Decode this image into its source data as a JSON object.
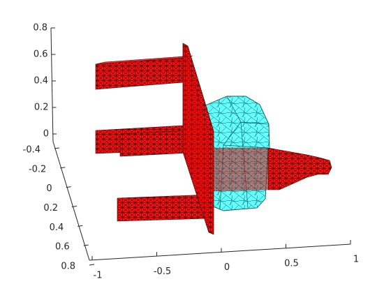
{
  "chart_data": {
    "type": "mesh3d",
    "title": "",
    "xlabel": "",
    "ylabel": "",
    "zlabel": "",
    "grid": false,
    "xlim": [
      -1,
      1
    ],
    "ylim": [
      -0.4,
      0.8
    ],
    "zlim": [
      0,
      0.8
    ],
    "x_ticks": [
      "-1",
      "-0.5",
      "0",
      "0.5",
      "1"
    ],
    "y_ticks": [
      "-0.4",
      "-0.2",
      "0",
      "0.2",
      "0.4",
      "0.6",
      "0.8"
    ],
    "z_ticks": [
      "0",
      "0.2",
      "0.4",
      "0.6",
      "0.8"
    ],
    "colors": {
      "mount_mesh": "#ff0000",
      "housing_mesh": "#66ffff",
      "edge": "#000000",
      "axis": "#262626"
    },
    "objects": [
      {
        "part": "mount-plate",
        "color": "#ff0000"
      },
      {
        "part": "upper-prong",
        "color": "#ff0000"
      },
      {
        "part": "middle-prong-left",
        "color": "#ff0000"
      },
      {
        "part": "middle-prong-right",
        "color": "#ff0000"
      },
      {
        "part": "lower-prong",
        "color": "#ff0000"
      },
      {
        "part": "body-housing",
        "color": "#66ffff"
      },
      {
        "part": "nozzle",
        "color": "#ff0000"
      }
    ]
  }
}
